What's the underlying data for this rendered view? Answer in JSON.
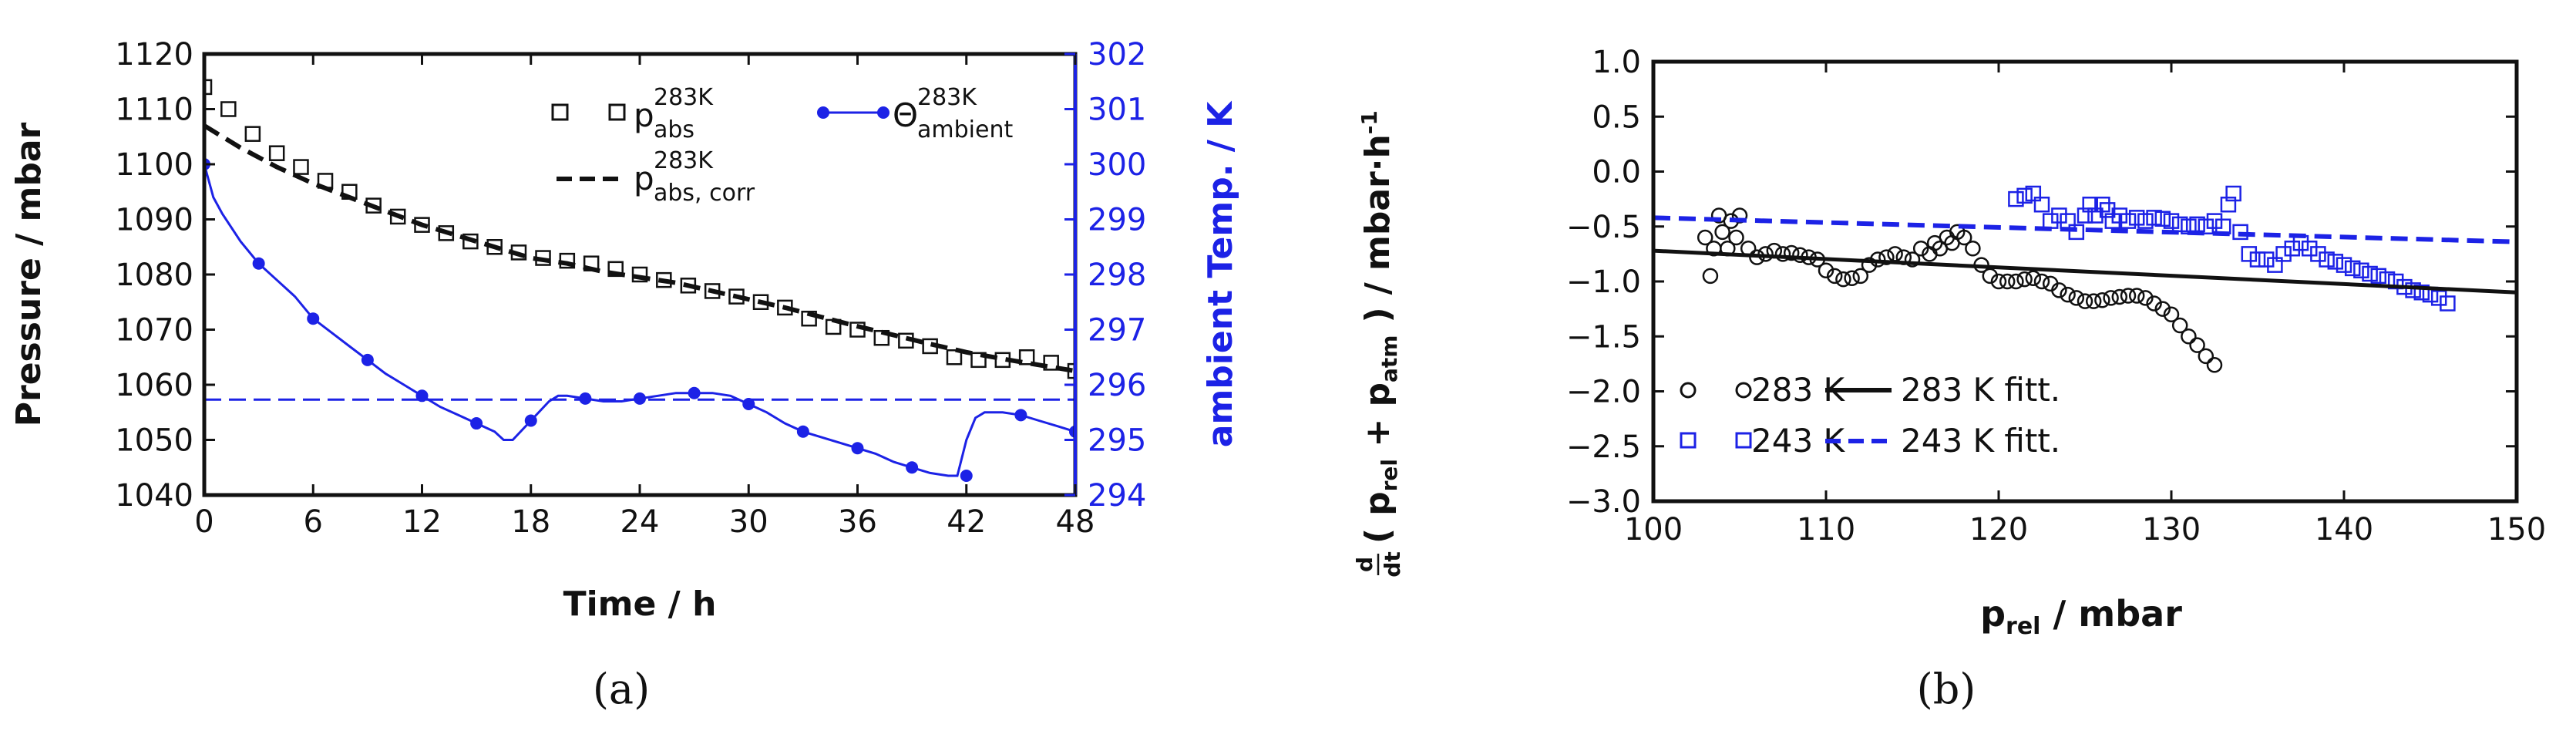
{
  "chart_data": [
    {
      "type": "scatter",
      "panel_label": "(a)",
      "xlabel": "Time / h",
      "ylabel": "Pressure / mbar",
      "y2label": "ambient Temp. / K",
      "xlim": [
        0,
        48
      ],
      "ylim": [
        1040,
        1120
      ],
      "y2lim": [
        294,
        302
      ],
      "xticks": [
        "0",
        "6",
        "12",
        "18",
        "24",
        "30",
        "36",
        "42",
        "48"
      ],
      "yticks": [
        "1040",
        "1050",
        "1060",
        "1070",
        "1080",
        "1090",
        "1100",
        "1110",
        "1120"
      ],
      "y2ticks": [
        "294",
        "295",
        "296",
        "297",
        "298",
        "299",
        "300",
        "301",
        "302"
      ],
      "grid": false,
      "colors": {
        "pressure": "#111111",
        "temperature": "#1c22e6"
      },
      "legend": {
        "p_abs": {
          "base": "p",
          "sup": "283K",
          "sub": "abs"
        },
        "p_abs_corr": {
          "base": "p",
          "sup": "283K",
          "sub": "abs, corr"
        },
        "theta": {
          "base": "Θ",
          "sup": "283K",
          "sub": "ambient"
        }
      },
      "series": [
        {
          "key": "p_abs",
          "style": "open-square",
          "axis": "left",
          "x": [
            0,
            1.33,
            2.67,
            4,
            5.33,
            6.67,
            8,
            9.33,
            10.67,
            12,
            13.33,
            14.67,
            16,
            17.33,
            18.67,
            20,
            21.33,
            22.67,
            24,
            25.33,
            26.67,
            28,
            29.33,
            30.67,
            32,
            33.33,
            34.67,
            36,
            37.33,
            38.67,
            40,
            41.33,
            42.67,
            44,
            45.33,
            46.67,
            48
          ],
          "y": [
            1114,
            1110,
            1105.5,
            1102,
            1099.5,
            1097,
            1095,
            1092.5,
            1090.5,
            1089,
            1087.5,
            1086,
            1085,
            1084,
            1083,
            1082.5,
            1082,
            1081,
            1080,
            1079,
            1078,
            1077,
            1076,
            1075,
            1074,
            1072,
            1070.5,
            1070,
            1068.5,
            1068,
            1067,
            1065,
            1064.5,
            1064.5,
            1065,
            1064,
            1062.5
          ]
        },
        {
          "key": "p_abs_corr",
          "style": "dashed",
          "axis": "left",
          "x": [
            0,
            1,
            2,
            4,
            6,
            8,
            10,
            12,
            14,
            16,
            18,
            20,
            22,
            24,
            26,
            28,
            30,
            32,
            34,
            36,
            38,
            40,
            42,
            44,
            46,
            48
          ],
          "y": [
            1107,
            1105,
            1103,
            1099.5,
            1096.5,
            1094,
            1091.5,
            1089,
            1087,
            1085,
            1083,
            1082,
            1080.5,
            1079.5,
            1078.5,
            1077,
            1075.5,
            1074,
            1072.3,
            1070.6,
            1069,
            1067.4,
            1065.9,
            1064.7,
            1063.6,
            1062.5
          ]
        },
        {
          "key": "theta",
          "style": "blue-line-dots",
          "axis": "right",
          "x": [
            0,
            0.5,
            1,
            2,
            3,
            4,
            5,
            6,
            7,
            8,
            9,
            10,
            11,
            12,
            13,
            14,
            15,
            16,
            16.5,
            17,
            18,
            19,
            19.5,
            20,
            21,
            22,
            23,
            24,
            25,
            26,
            27,
            28,
            29,
            30,
            31,
            32,
            33,
            34,
            35,
            36,
            37,
            38,
            39,
            40,
            41,
            41.5,
            42,
            42.5,
            43,
            44,
            45,
            46,
            47,
            48
          ],
          "y": [
            300,
            299.4,
            299.1,
            298.6,
            298.2,
            297.9,
            297.6,
            297.2,
            296.95,
            296.7,
            296.45,
            296.2,
            296,
            295.8,
            295.6,
            295.45,
            295.3,
            295.15,
            295.0,
            295.0,
            295.35,
            295.7,
            295.8,
            295.8,
            295.75,
            295.7,
            295.7,
            295.75,
            295.8,
            295.85,
            295.85,
            295.85,
            295.8,
            295.65,
            295.5,
            295.3,
            295.15,
            295.05,
            294.95,
            294.85,
            294.75,
            294.6,
            294.5,
            294.4,
            294.35,
            294.35,
            295.0,
            295.4,
            295.5,
            295.5,
            295.45,
            295.35,
            295.25,
            295.15
          ]
        }
      ],
      "markers": {
        "theta_x": [
          0,
          3,
          6,
          9,
          12,
          15,
          18,
          21,
          24,
          27,
          30,
          33,
          36,
          39,
          42,
          45,
          48
        ],
        "theta_y": [
          300,
          298.2,
          297.2,
          296.45,
          295.8,
          295.3,
          295.35,
          295.75,
          295.75,
          295.85,
          295.65,
          295.15,
          294.85,
          294.5,
          294.35,
          295.45,
          295.15
        ]
      },
      "reference_line": {
        "axis": "right",
        "y": 295.73,
        "style": "dashed",
        "color": "#1c22e6"
      }
    },
    {
      "type": "scatter",
      "panel_label": "(b)",
      "xlabel": {
        "base": "p",
        "sub": "rel",
        "rest": " / mbar"
      },
      "ylabel": {
        "frac_num": "d",
        "frac_den": "dt",
        "open": "(",
        "p1": "p",
        "p1sub": "rel",
        "plus": " + ",
        "p2": "p",
        "p2sub": "atm",
        "close": ")",
        "unit": "/ mbar·h",
        "unit_sup": "-1"
      },
      "xlim": [
        100,
        150
      ],
      "ylim": [
        -3.0,
        1.0
      ],
      "xticks": [
        "100",
        "110",
        "120",
        "130",
        "140",
        "150"
      ],
      "yticks": [
        "−3.0",
        "−2.5",
        "−2.0",
        "−1.5",
        "−1.0",
        "−0.5",
        "0.0",
        "0.5",
        "1.0"
      ],
      "grid": false,
      "legend_position": "lower-left",
      "colors": {
        "283": "#111111",
        "243": "#1c22e6"
      },
      "series": [
        {
          "name": "283 K",
          "style": "open-circle",
          "x": [
            103,
            103.3,
            103.5,
            103.8,
            104,
            104.3,
            104.5,
            104.8,
            105,
            105.5,
            106,
            106.5,
            107,
            107.5,
            108,
            108.5,
            109,
            109.5,
            110,
            110.5,
            111,
            111.5,
            112,
            112.5,
            113,
            113.5,
            114,
            114.5,
            115,
            115.5,
            116,
            116.3,
            116.6,
            117,
            117.3,
            117.6,
            118,
            118.5,
            119,
            119.5,
            120,
            120.5,
            121,
            121.5,
            122,
            122.5,
            123,
            123.5,
            124,
            124.5,
            125,
            125.5,
            126,
            126.5,
            127,
            127.5,
            128,
            128.5,
            129,
            129.5,
            130,
            130.5,
            131,
            131.5,
            132,
            132.5
          ],
          "y": [
            -0.6,
            -0.95,
            -0.7,
            -0.4,
            -0.55,
            -0.7,
            -0.45,
            -0.6,
            -0.4,
            -0.7,
            -0.78,
            -0.75,
            -0.72,
            -0.75,
            -0.74,
            -0.76,
            -0.78,
            -0.8,
            -0.9,
            -0.95,
            -0.98,
            -0.97,
            -0.95,
            -0.85,
            -0.8,
            -0.78,
            -0.75,
            -0.78,
            -0.8,
            -0.7,
            -0.75,
            -0.65,
            -0.7,
            -0.6,
            -0.65,
            -0.55,
            -0.6,
            -0.7,
            -0.85,
            -0.95,
            -1.0,
            -1.0,
            -1.0,
            -0.98,
            -0.97,
            -1.0,
            -1.02,
            -1.08,
            -1.12,
            -1.15,
            -1.18,
            -1.18,
            -1.17,
            -1.15,
            -1.14,
            -1.13,
            -1.13,
            -1.15,
            -1.2,
            -1.25,
            -1.3,
            -1.4,
            -1.5,
            -1.58,
            -1.68,
            -1.76
          ]
        },
        {
          "name": "243 K",
          "style": "open-square",
          "x": [
            121,
            121.5,
            122,
            122.5,
            123,
            123.5,
            124,
            124.5,
            125,
            125.3,
            125.6,
            126,
            126.3,
            126.6,
            127,
            127.5,
            128,
            128.5,
            129,
            129.5,
            130,
            130.5,
            131,
            131.5,
            132,
            132.5,
            133,
            133.3,
            133.6,
            134,
            134.5,
            135,
            135.5,
            136,
            136.5,
            137,
            137.5,
            138,
            138.5,
            139,
            139.5,
            140,
            140.5,
            141,
            141.5,
            142,
            142.5,
            143,
            143.5,
            144,
            144.5,
            145,
            145.5,
            146
          ],
          "y": [
            -0.25,
            -0.22,
            -0.2,
            -0.3,
            -0.45,
            -0.4,
            -0.45,
            -0.55,
            -0.4,
            -0.3,
            -0.4,
            -0.3,
            -0.35,
            -0.45,
            -0.4,
            -0.45,
            -0.42,
            -0.45,
            -0.42,
            -0.43,
            -0.45,
            -0.48,
            -0.5,
            -0.48,
            -0.5,
            -0.45,
            -0.5,
            -0.3,
            -0.2,
            -0.55,
            -0.75,
            -0.8,
            -0.8,
            -0.85,
            -0.75,
            -0.7,
            -0.65,
            -0.7,
            -0.75,
            -0.8,
            -0.82,
            -0.85,
            -0.88,
            -0.9,
            -0.93,
            -0.95,
            -0.98,
            -1.0,
            -1.05,
            -1.08,
            -1.1,
            -1.12,
            -1.15,
            -1.2
          ]
        },
        {
          "name": "283 K fitt.",
          "style": "solid-line",
          "x": [
            100,
            150
          ],
          "y": [
            -0.72,
            -1.1
          ]
        },
        {
          "name": "243 K fitt.",
          "style": "dashed-line",
          "x": [
            100,
            150
          ],
          "y": [
            -0.42,
            -0.64
          ]
        }
      ]
    }
  ]
}
